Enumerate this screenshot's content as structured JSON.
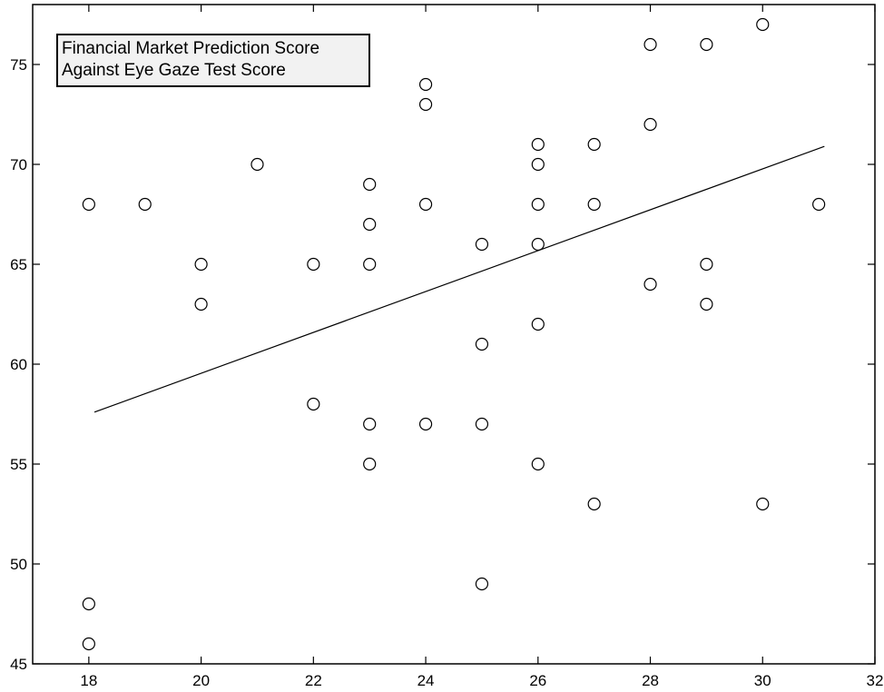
{
  "chart_data": {
    "type": "scatter",
    "title": "",
    "legend_entries": [
      "Financial Market Prediction Score",
      "Against Eye Gaze Test Score"
    ],
    "legend_placement": "top-left",
    "xlabel": "",
    "ylabel": "",
    "xlim": [
      17,
      32
    ],
    "ylim": [
      45,
      78
    ],
    "grid": false,
    "x_ticks": [
      18,
      20,
      22,
      24,
      26,
      28,
      30,
      32
    ],
    "y_ticks": [
      45,
      50,
      55,
      60,
      65,
      70,
      75
    ],
    "points": [
      {
        "x": 18,
        "y": 68
      },
      {
        "x": 18,
        "y": 48
      },
      {
        "x": 18,
        "y": 46
      },
      {
        "x": 19,
        "y": 68
      },
      {
        "x": 20,
        "y": 65
      },
      {
        "x": 20,
        "y": 63
      },
      {
        "x": 21,
        "y": 70
      },
      {
        "x": 22,
        "y": 65
      },
      {
        "x": 22,
        "y": 58
      },
      {
        "x": 23,
        "y": 69
      },
      {
        "x": 23,
        "y": 67
      },
      {
        "x": 23,
        "y": 65
      },
      {
        "x": 23,
        "y": 57
      },
      {
        "x": 23,
        "y": 55
      },
      {
        "x": 24,
        "y": 74
      },
      {
        "x": 24,
        "y": 73
      },
      {
        "x": 24,
        "y": 68
      },
      {
        "x": 24,
        "y": 57
      },
      {
        "x": 25,
        "y": 66
      },
      {
        "x": 25,
        "y": 61
      },
      {
        "x": 25,
        "y": 57
      },
      {
        "x": 25,
        "y": 49
      },
      {
        "x": 26,
        "y": 71
      },
      {
        "x": 26,
        "y": 70
      },
      {
        "x": 26,
        "y": 68
      },
      {
        "x": 26,
        "y": 66
      },
      {
        "x": 26,
        "y": 62
      },
      {
        "x": 26,
        "y": 55
      },
      {
        "x": 27,
        "y": 71
      },
      {
        "x": 27,
        "y": 68
      },
      {
        "x": 27,
        "y": 53
      },
      {
        "x": 28,
        "y": 76
      },
      {
        "x": 28,
        "y": 72
      },
      {
        "x": 28,
        "y": 64
      },
      {
        "x": 29,
        "y": 76
      },
      {
        "x": 29,
        "y": 65
      },
      {
        "x": 29,
        "y": 63
      },
      {
        "x": 30,
        "y": 77
      },
      {
        "x": 30,
        "y": 53
      },
      {
        "x": 31,
        "y": 68
      }
    ],
    "fit_line": {
      "x": [
        18.1,
        31.1
      ],
      "y": [
        57.6,
        70.9
      ]
    },
    "marker": "open-circle",
    "colors": {
      "marker": "#000000",
      "line": "#000000",
      "legend_bg": "#f2f2f2"
    }
  }
}
